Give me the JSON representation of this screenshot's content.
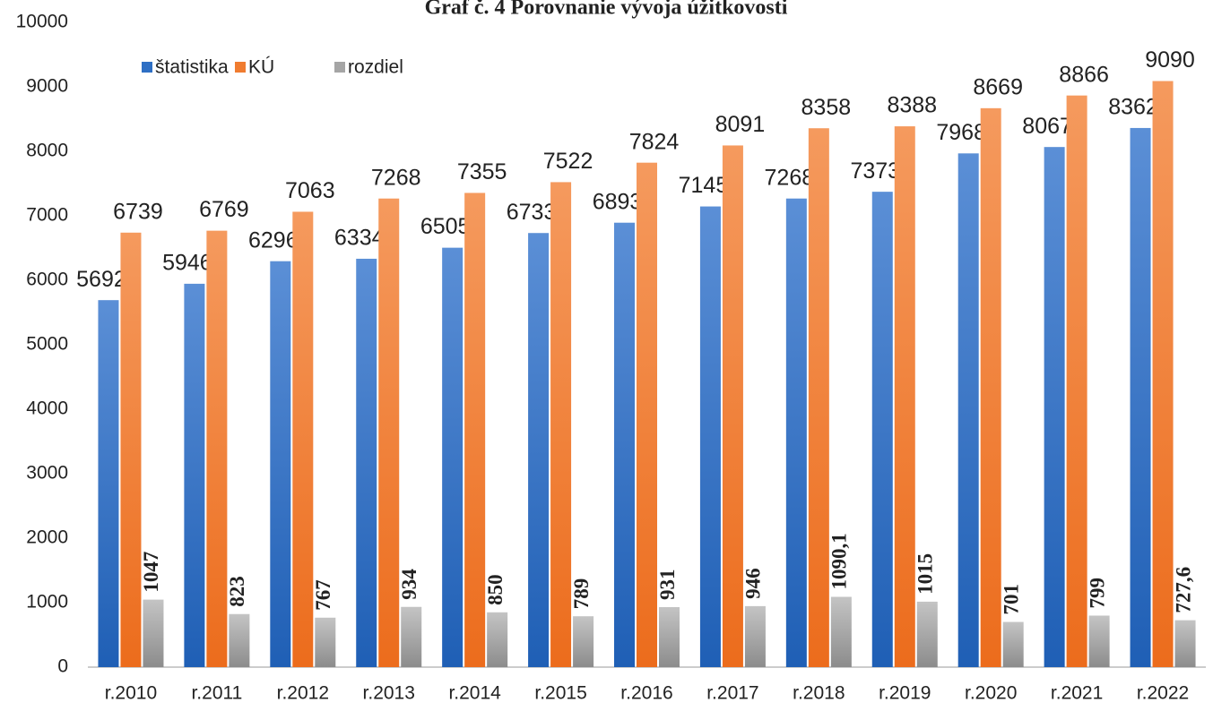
{
  "chart_data": {
    "type": "bar",
    "title": "Graf č. 4 Porovnanie vývoja úžitkovosti",
    "categories": [
      "r.2010",
      "r.2011",
      "r.2012",
      "r.2013",
      "r.2014",
      "r.2015",
      "r.2016",
      "r.2017",
      "r.2018",
      "r.2019",
      "r.2020",
      "r.2021",
      "r.2022"
    ],
    "series": [
      {
        "name": "štatistika",
        "color": "#2e6fc4",
        "values": [
          5692,
          5946,
          6296,
          6334,
          6505,
          6733,
          6893,
          7145,
          7268,
          7373,
          7968,
          8067,
          8362
        ]
      },
      {
        "name": "KÚ",
        "color": "#f07c30",
        "values": [
          6739,
          6769,
          7063,
          7268,
          7355,
          7522,
          7824,
          8091,
          8358,
          8388,
          8669,
          8866,
          9090
        ]
      },
      {
        "name": "rozdiel",
        "color": "#a5a5a5",
        "values": [
          1047,
          823,
          767,
          934,
          850,
          789,
          931,
          946,
          1090.1,
          1015,
          701,
          799,
          727.6
        ],
        "value_labels": [
          "1047",
          "823",
          "767",
          "934",
          "850",
          "789",
          "931",
          "946",
          "1090,1",
          "1015",
          "701",
          "799",
          "727,6"
        ]
      }
    ],
    "ylim": [
      0,
      10000
    ],
    "yticks": [
      0,
      1000,
      2000,
      3000,
      4000,
      5000,
      6000,
      7000,
      8000,
      9000,
      10000
    ],
    "grid": false,
    "legend": "top-left"
  }
}
